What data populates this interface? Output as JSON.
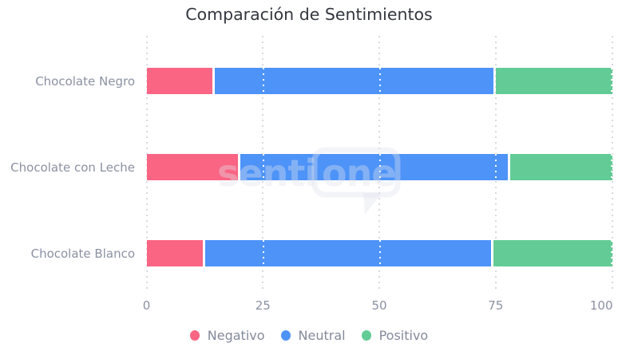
{
  "title": "Comparación de Sentimientos",
  "chart_data": {
    "type": "bar",
    "orientation": "horizontal",
    "stacked": true,
    "categories": [
      "Chocolate Negro",
      "Chocolate con Leche",
      "Chocolate Blanco"
    ],
    "series": [
      {
        "name": "Negativo",
        "color": "#FA6584",
        "values": [
          14.5,
          20,
          12.5
        ]
      },
      {
        "name": "Neutral",
        "color": "#4D93F8",
        "values": [
          60.5,
          58,
          62
        ]
      },
      {
        "name": "Positivo",
        "color": "#63CB96",
        "values": [
          25,
          22,
          25.5
        ]
      }
    ],
    "title": "Comparación de Sentimientos",
    "xlabel": "",
    "ylabel": "",
    "x_ticks": [
      0,
      25,
      50,
      75,
      100
    ],
    "xlim": [
      0,
      100
    ],
    "grid": "vertical-dotted",
    "legend_position": "bottom-center"
  },
  "watermark": {
    "text": "sentione",
    "text_left": "senti",
    "text_bubble": "one"
  }
}
